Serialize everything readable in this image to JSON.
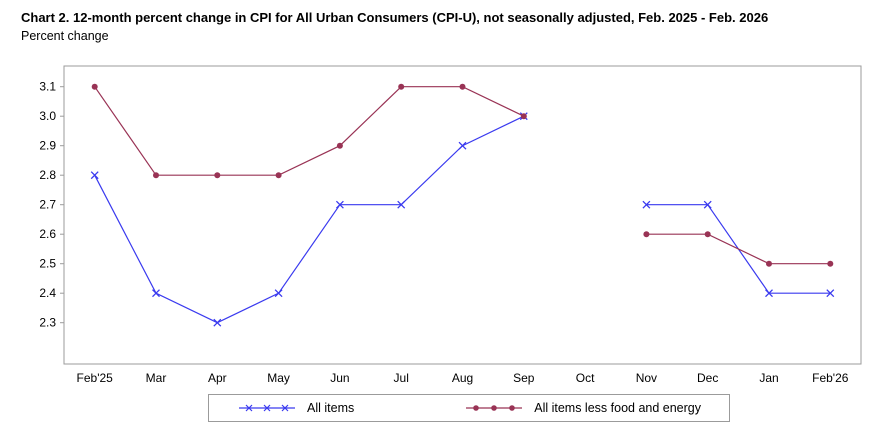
{
  "chart_data": {
    "type": "line",
    "title": "Chart 2. 12-month percent change in CPI for All Urban Consumers (CPI-U), not seasonally adjusted, Feb. 2025 - Feb. 2026",
    "ylabel": "Percent change",
    "categories": [
      "Feb'25",
      "Mar",
      "Apr",
      "May",
      "Jun",
      "Jul",
      "Aug",
      "Sep",
      "Oct",
      "Nov",
      "Dec",
      "Jan",
      "Feb'26"
    ],
    "series": [
      {
        "name": "All items",
        "color": "#3a3aef",
        "marker": "x",
        "values": [
          2.8,
          2.4,
          2.3,
          2.4,
          2.7,
          2.7,
          2.9,
          3.0,
          null,
          2.7,
          2.7,
          2.4,
          2.4
        ]
      },
      {
        "name": "All items less food and energy",
        "color": "#993355",
        "marker": "circle",
        "values": [
          3.1,
          2.8,
          2.8,
          2.8,
          2.9,
          3.1,
          3.1,
          3.0,
          null,
          2.6,
          2.6,
          2.5,
          2.5
        ]
      }
    ],
    "yticks": [
      2.3,
      2.4,
      2.5,
      2.6,
      2.7,
      2.8,
      2.9,
      3.0,
      3.1
    ],
    "ylim": [
      2.16,
      3.17
    ],
    "grid": false,
    "legend_position": "bottom"
  }
}
